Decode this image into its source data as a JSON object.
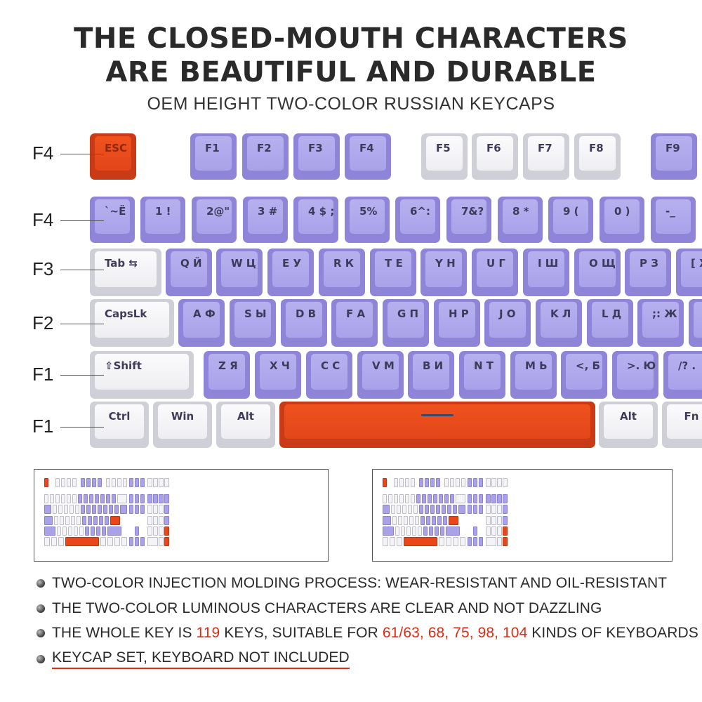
{
  "header": {
    "title_line1": "THE CLOSED-MOUTH CHARACTERS",
    "title_line2": "ARE BEAUTIFUL AND DURABLE",
    "subtitle": "OEM HEIGHT TWO-COLOR RUSSIAN KEYCAPS"
  },
  "row_labels": [
    "F4",
    "F4",
    "F3",
    "F2",
    "F1",
    "F1"
  ],
  "keyboard_rows": [
    [
      {
        "label": "ESC",
        "color": "red"
      },
      {
        "label": "F1",
        "color": "purple"
      },
      {
        "label": "F2",
        "color": "purple"
      },
      {
        "label": "F3",
        "color": "purple"
      },
      {
        "label": "F4",
        "color": "purple"
      },
      {
        "label": "F5",
        "color": "white"
      },
      {
        "label": "F6",
        "color": "white"
      },
      {
        "label": "F7",
        "color": "white"
      },
      {
        "label": "F8",
        "color": "white"
      },
      {
        "label": "F9",
        "color": "purple"
      }
    ],
    [
      {
        "label": "`~Ё",
        "color": "purple"
      },
      {
        "label": "1 !",
        "color": "purple"
      },
      {
        "label": "2@\"",
        "color": "purple"
      },
      {
        "label": "3 #",
        "color": "purple"
      },
      {
        "label": "4 $ ;",
        "color": "purple"
      },
      {
        "label": "5%",
        "color": "purple"
      },
      {
        "label": "6^:",
        "color": "purple"
      },
      {
        "label": "7&?",
        "color": "purple"
      },
      {
        "label": "8 *",
        "color": "purple"
      },
      {
        "label": "9 (",
        "color": "purple"
      },
      {
        "label": "0 )",
        "color": "purple"
      },
      {
        "label": "-_",
        "color": "purple"
      }
    ],
    [
      {
        "label": "Tab ⇆",
        "color": "white"
      },
      {
        "label": "Q Й",
        "color": "purple"
      },
      {
        "label": "W Ц",
        "color": "purple"
      },
      {
        "label": "E У",
        "color": "purple"
      },
      {
        "label": "R К",
        "color": "purple"
      },
      {
        "label": "T Е",
        "color": "purple"
      },
      {
        "label": "Y Н",
        "color": "purple"
      },
      {
        "label": "U Г",
        "color": "purple"
      },
      {
        "label": "I Ш",
        "color": "purple"
      },
      {
        "label": "O Щ",
        "color": "purple"
      },
      {
        "label": "P З",
        "color": "purple"
      },
      {
        "label": "[ Х",
        "color": "purple"
      }
    ],
    [
      {
        "label": "CapsLk",
        "color": "white"
      },
      {
        "label": "A Ф",
        "color": "purple"
      },
      {
        "label": "S Ы",
        "color": "purple"
      },
      {
        "label": "D В",
        "color": "purple"
      },
      {
        "label": "F А",
        "color": "purple"
      },
      {
        "label": "G П",
        "color": "purple"
      },
      {
        "label": "H Р",
        "color": "purple"
      },
      {
        "label": "J О",
        "color": "purple"
      },
      {
        "label": "K Л",
        "color": "purple"
      },
      {
        "label": "L Д",
        "color": "purple"
      },
      {
        "label": ";: Ж",
        "color": "purple"
      },
      {
        "label": "'\"",
        "color": "purple"
      }
    ],
    [
      {
        "label": "⇧Shift",
        "color": "white"
      },
      {
        "label": "Z Я",
        "color": "purple"
      },
      {
        "label": "X Ч",
        "color": "purple"
      },
      {
        "label": "C С",
        "color": "purple"
      },
      {
        "label": "V М",
        "color": "purple"
      },
      {
        "label": "B И",
        "color": "purple"
      },
      {
        "label": "N Т",
        "color": "purple"
      },
      {
        "label": "M Ь",
        "color": "purple"
      },
      {
        "label": "<, Б",
        "color": "purple"
      },
      {
        "label": ">. Ю",
        "color": "purple"
      },
      {
        "label": "/? .",
        "color": "purple"
      }
    ],
    [
      {
        "label": "Ctrl",
        "color": "white"
      },
      {
        "label": "Win",
        "color": "white"
      },
      {
        "label": "Alt",
        "color": "white"
      },
      {
        "label": "",
        "color": "red"
      },
      {
        "label": "Alt",
        "color": "white"
      },
      {
        "label": "Fn",
        "color": "white"
      }
    ]
  ],
  "colors": {
    "purple": "#aaa2ea",
    "white": "#f4f4f6",
    "red": "#e9471a",
    "highlight": "#e02a12"
  },
  "bullets": [
    {
      "text": "TWO-COLOR INJECTION MOLDING PROCESS: WEAR-RESISTANT AND OIL-RESISTANT"
    },
    {
      "text": "THE TWO-COLOR LUMINOUS CHARACTERS ARE CLEAR AND NOT DAZZLING"
    },
    {
      "pre": "THE WHOLE KEY IS ",
      "count": "119",
      "mid": " KEYS, SUITABLE FOR ",
      "sizes": "61/63, 68, 75, 98, 104",
      "post": " KINDS OF KEYBOARDS"
    },
    {
      "text": "KEYCAP SET, KEYBOARD NOT INCLUDED"
    }
  ]
}
